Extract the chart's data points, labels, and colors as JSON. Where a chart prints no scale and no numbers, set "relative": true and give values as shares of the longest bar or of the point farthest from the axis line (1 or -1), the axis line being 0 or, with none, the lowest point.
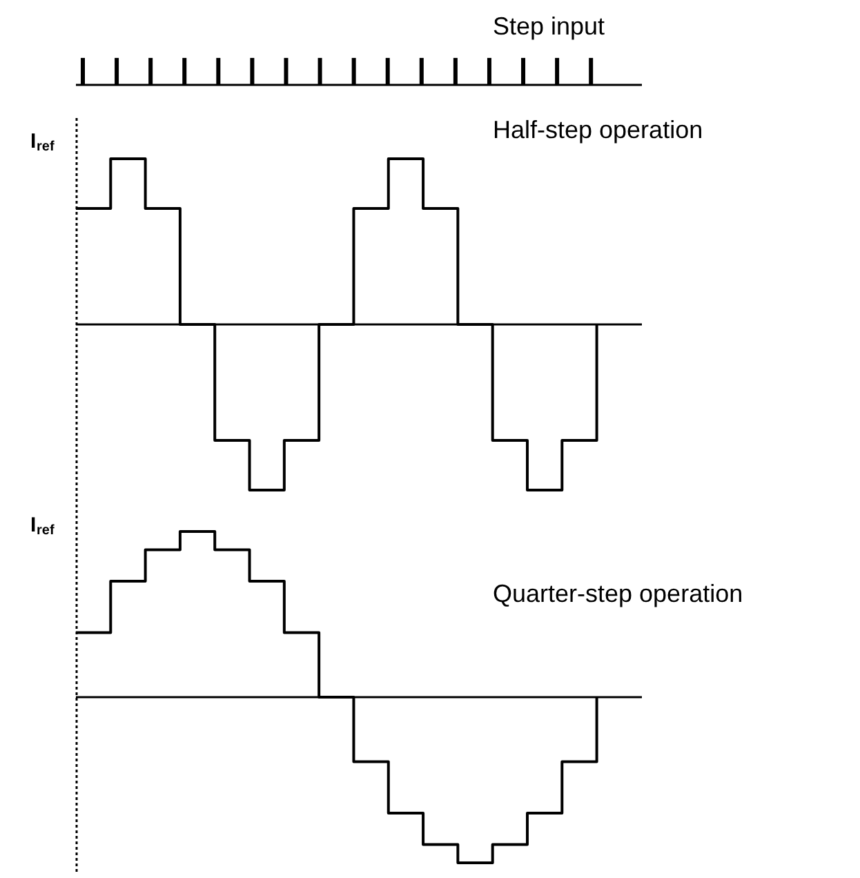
{
  "chart_data": [
    {
      "type": "bar",
      "title": "Step input",
      "relative": true,
      "color": "#000000",
      "categories": [
        null,
        null,
        null,
        null,
        null,
        null,
        null,
        null,
        null,
        null,
        null,
        null,
        null,
        null,
        null,
        null
      ],
      "values": [
        1,
        1,
        1,
        1,
        1,
        1,
        1,
        1,
        1,
        1,
        1,
        1,
        1,
        1,
        1,
        1
      ]
    },
    {
      "type": "step",
      "title": "Half-step operation",
      "relative": true,
      "color": "#000000",
      "annotations": [
        "I$_{ref}$"
      ],
      "categories": [
        null,
        null,
        null,
        null,
        null,
        null,
        null,
        null,
        null,
        null,
        null,
        null,
        null,
        null,
        null,
        null
      ],
      "values": [
        0.7,
        1,
        0.7,
        0,
        -0.7,
        -1,
        -0.7,
        0,
        0.7,
        1,
        0.7,
        0,
        -0.7,
        -1,
        -0.7,
        0
      ]
    },
    {
      "type": "step",
      "title": "Quarter-step operation",
      "relative": true,
      "color": "#000000",
      "annotations": [
        "I$_{ref}$"
      ],
      "categories": [
        null,
        null,
        null,
        null,
        null,
        null,
        null,
        null,
        null,
        null,
        null,
        null,
        null,
        null,
        null,
        null
      ],
      "values": [
        0.39,
        0.7,
        0.89,
        1,
        0.89,
        0.7,
        0.39,
        0,
        -0.39,
        -0.7,
        -0.89,
        -1,
        -0.89,
        -0.7,
        -0.39,
        0
      ]
    }
  ]
}
